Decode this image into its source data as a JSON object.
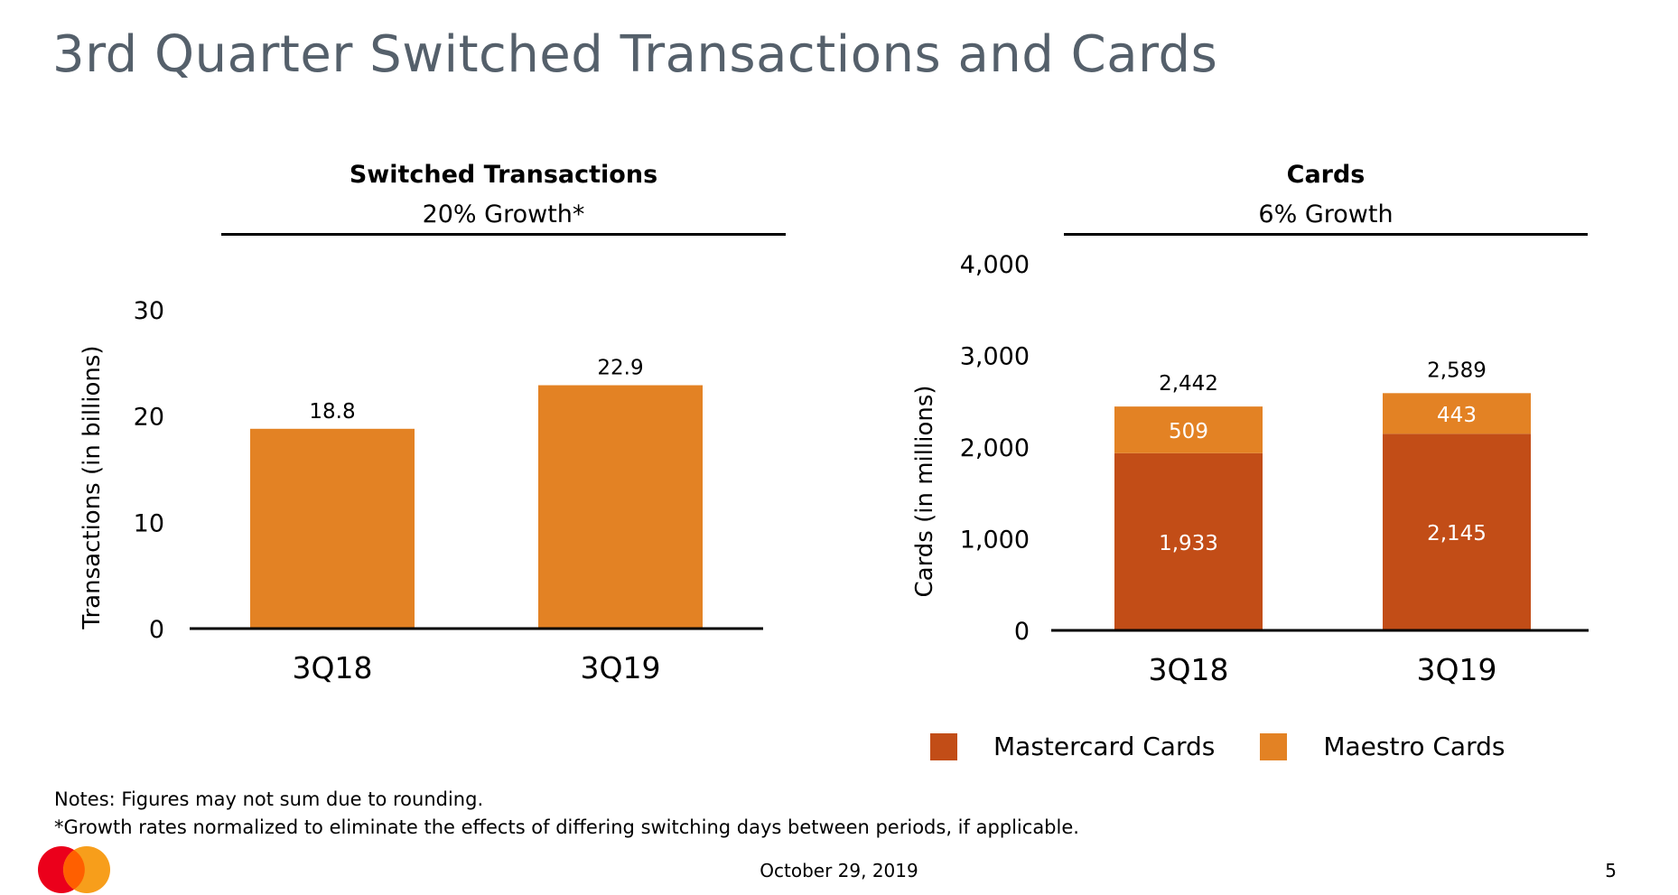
{
  "page": {
    "title": "3rd Quarter Switched Transactions and Cards",
    "notes": [
      "Notes: Figures may not sum due to rounding.",
      "*Growth rates normalized to eliminate the effects of differing switching days between periods, if applicable."
    ],
    "date": "October 29, 2019",
    "page_number": "5",
    "logo": "mastercard-logo"
  },
  "left_panel": {
    "title": "Switched Transactions",
    "subtitle": "20% Growth*"
  },
  "right_panel": {
    "title": "Cards",
    "subtitle": "6% Growth"
  },
  "legend": {
    "items": [
      "Mastercard Cards",
      "Maestro Cards"
    ]
  },
  "colors": {
    "mastercard": "#c24d17",
    "maestro": "#e38224",
    "single": "#e38224",
    "title": "#55606b"
  },
  "chart_data": [
    {
      "type": "bar",
      "title": "Switched Transactions",
      "subtitle": "20% Growth*",
      "categories": [
        "3Q18",
        "3Q19"
      ],
      "values": [
        18.8,
        22.9
      ],
      "value_labels": [
        "18.8",
        "22.9"
      ],
      "ylabel": "Transactions (in billions)",
      "ylim": [
        0,
        30
      ],
      "yticks": [
        0,
        10,
        20,
        30
      ],
      "ytick_labels": [
        "0",
        "10",
        "20",
        "30"
      ],
      "grid": false
    },
    {
      "type": "bar",
      "stacked": true,
      "title": "Cards",
      "subtitle": "6% Growth",
      "categories": [
        "3Q18",
        "3Q19"
      ],
      "series": [
        {
          "name": "Mastercard Cards",
          "values": [
            1933,
            2145
          ],
          "labels": [
            "1,933",
            "2,145"
          ]
        },
        {
          "name": "Maestro Cards",
          "values": [
            509,
            443
          ],
          "labels": [
            "509",
            "443"
          ]
        }
      ],
      "totals": [
        2442,
        2589
      ],
      "total_labels": [
        "2,442",
        "2,589"
      ],
      "ylabel": "Cards (in millions)",
      "ylim": [
        0,
        4000
      ],
      "yticks": [
        0,
        1000,
        2000,
        3000,
        4000
      ],
      "ytick_labels": [
        "0",
        "1,000",
        "2,000",
        "3,000",
        "4,000"
      ],
      "legend": "bottom",
      "grid": false
    }
  ]
}
